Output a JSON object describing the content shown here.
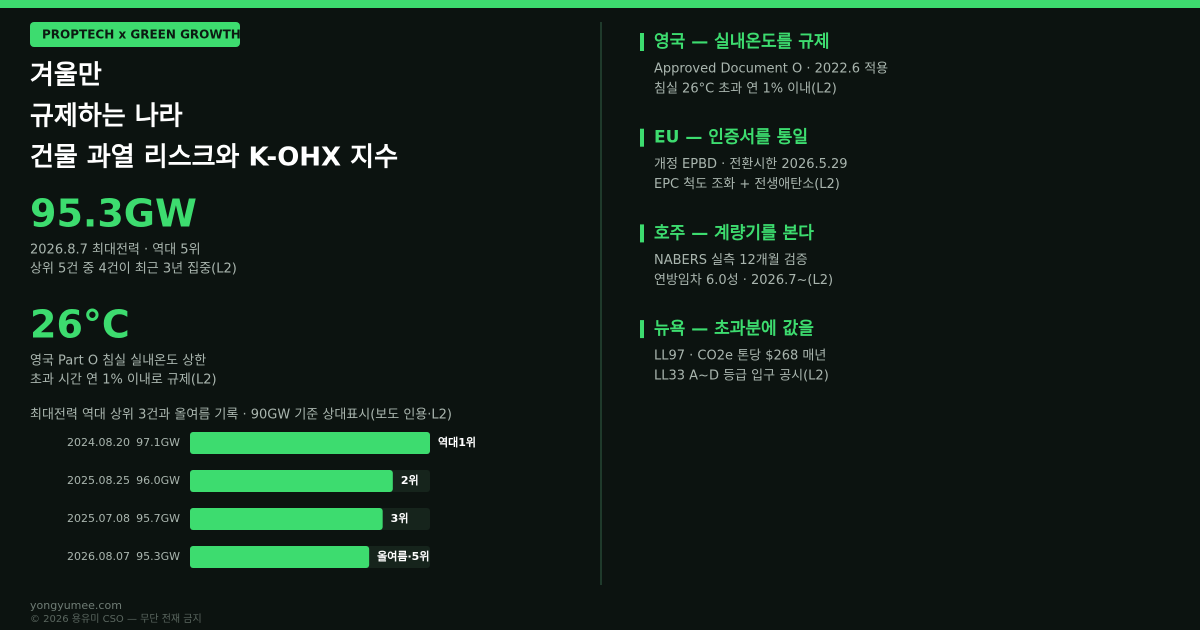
{
  "header": {
    "badge": "PROPTECH x GREEN GROWTH",
    "title_lines": [
      "겨울만",
      "규제하는 나라",
      "건물 과열 리스크와 K-OHX 지수"
    ]
  },
  "stats": [
    {
      "value": "95.3GW",
      "lines": [
        "2026.8.7 최대전력 · 역대 5위",
        "상위 5건 중 4건이 최근 3년 집중(L2)"
      ]
    },
    {
      "value": "26°C",
      "lines": [
        "영국 Part O 침실 실내온도 상한",
        "초과 시간 연 1% 이내로 규제(L2)"
      ]
    }
  ],
  "chart_data": {
    "type": "bar",
    "orientation": "horizontal",
    "title": "최대전력 역대 상위 3건과 올여름 기록 · 90GW 기준 상대표시(보도 인용·L2)",
    "categories": [
      "2024.08.20",
      "2025.08.25",
      "2025.07.08",
      "2026.08.07"
    ],
    "values": [
      97.1,
      96.0,
      95.7,
      95.3
    ],
    "value_labels": [
      "97.1GW",
      "96.0GW",
      "95.7GW",
      "95.3GW"
    ],
    "annotations": [
      "역대1위",
      "2위",
      "3위",
      "올여름·5위"
    ],
    "xlim": [
      90,
      97.1
    ],
    "color": "#3ddc6f"
  },
  "sections": [
    {
      "heading": "영국 — 실내온도를 규제",
      "lines": [
        "Approved Document O · 2022.6 적용",
        "침실 26°C 초과 연 1% 이내(L2)"
      ]
    },
    {
      "heading": "EU — 인증서를 통일",
      "lines": [
        "개정 EPBD · 전환시한 2026.5.29",
        "EPC 척도 조화 + 전생애탄소(L2)"
      ]
    },
    {
      "heading": "호주 — 계량기를 본다",
      "lines": [
        "NABERS 실측 12개월 검증",
        "연방임차 6.0성 · 2026.7~(L2)"
      ]
    },
    {
      "heading": "뉴욕 — 초과분에 값을",
      "lines": [
        "LL97 · CO2e 톤당 $268 매년",
        "LL33 A~D 등급 입구 공시(L2)"
      ]
    }
  ],
  "footer": {
    "site": "yongyumee.com",
    "copyright": "© 2026 용유미 CSO — 무단 전재 금지"
  }
}
